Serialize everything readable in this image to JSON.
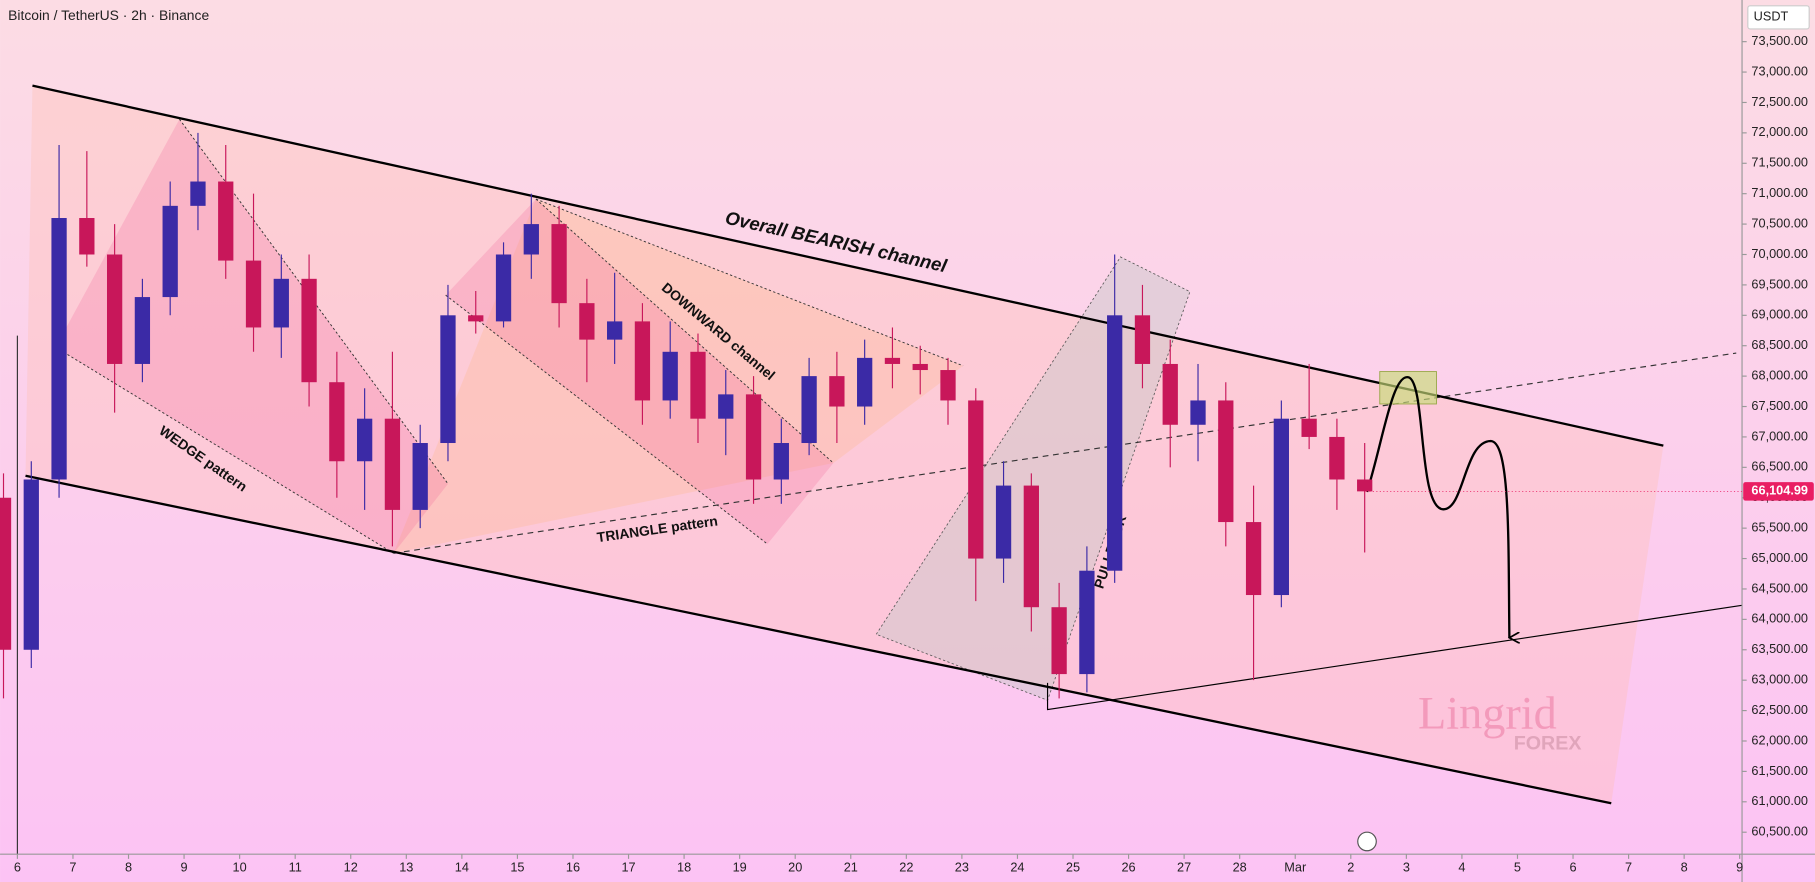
{
  "chart_data": {
    "type": "candlestick",
    "title": "Bitcoin / TetherUS · 2h · Binance",
    "currency": "USDT",
    "x": [
      -0.25,
      0.25,
      0.75,
      1.25,
      1.75,
      2.25,
      2.75,
      3.25,
      3.75,
      4.25,
      4.75,
      5.25,
      5.75,
      6.25,
      6.75,
      7.25,
      7.75,
      8.25,
      8.75,
      9.25,
      9.75,
      10.25,
      10.75,
      11.25,
      11.75,
      12.25,
      12.75,
      13.25,
      13.75,
      14.25,
      14.75,
      15.25,
      15.75,
      16.25,
      16.75,
      17.25,
      17.75,
      18.25,
      18.75,
      19.25,
      19.75,
      20.25,
      20.75,
      21.25,
      21.75,
      22.25,
      22.75,
      23.25,
      23.75,
      24.25
    ],
    "open": [
      66000,
      63500,
      66300,
      70600,
      70000,
      68200,
      69300,
      70800,
      71200,
      69900,
      68800,
      69600,
      67900,
      66600,
      67300,
      65800,
      66900,
      69000,
      68900,
      70000,
      70500,
      69200,
      68600,
      68900,
      67600,
      68400,
      67300,
      67700,
      66300,
      66900,
      68000,
      67500,
      68300,
      68200,
      68100,
      67600,
      65000,
      66200,
      64200,
      63100,
      64800,
      69000,
      68200,
      67200,
      67600,
      65600,
      64400,
      67300,
      67000,
      66300
    ],
    "high": [
      66400,
      66600,
      71800,
      71700,
      70500,
      69600,
      71200,
      72000,
      71800,
      71000,
      70000,
      70000,
      68400,
      67800,
      68400,
      67200,
      69500,
      69400,
      70200,
      71000,
      70800,
      69600,
      69700,
      69200,
      68900,
      68700,
      68100,
      68000,
      67300,
      68300,
      68400,
      68600,
      68800,
      68500,
      68300,
      67800,
      66600,
      66400,
      64600,
      65200,
      70000,
      69500,
      68600,
      68200,
      67900,
      66200,
      67600,
      68200,
      67300,
      66900
    ],
    "low": [
      62700,
      63200,
      66000,
      69800,
      67400,
      67900,
      69000,
      70400,
      69600,
      68400,
      68300,
      67500,
      66000,
      65800,
      65200,
      65500,
      66600,
      68700,
      68800,
      69600,
      68800,
      67900,
      68200,
      67200,
      67300,
      66900,
      66700,
      65900,
      65900,
      66700,
      66900,
      67200,
      67800,
      67700,
      67200,
      64300,
      64600,
      63800,
      62700,
      62800,
      64600,
      67800,
      66500,
      66600,
      65200,
      63000,
      64200,
      66800,
      65800,
      65100
    ],
    "close": [
      63500,
      66300,
      70600,
      70000,
      68200,
      69300,
      70800,
      71200,
      69900,
      68800,
      69600,
      67900,
      66600,
      67300,
      65800,
      66900,
      69000,
      68900,
      70000,
      70500,
      69200,
      68600,
      68900,
      67600,
      68400,
      67300,
      67700,
      66300,
      66900,
      68000,
      67500,
      68300,
      68200,
      68100,
      67600,
      65000,
      66200,
      64200,
      63100,
      64800,
      69000,
      68200,
      67200,
      67600,
      65600,
      64400,
      67300,
      67000,
      66300,
      66104.99
    ],
    "up_color": "#3b2aa6",
    "down_color": "#c8175a",
    "last_price": {
      "value": 66104.99,
      "label": "66,104.99"
    },
    "last_price_color": "#e91e63",
    "xlim": [
      -0.3125,
      31.042
    ],
    "xticks": [
      {
        "value": 0,
        "label": "6"
      },
      {
        "value": 1,
        "label": "7"
      },
      {
        "value": 2,
        "label": "8"
      },
      {
        "value": 3,
        "label": "9"
      },
      {
        "value": 4,
        "label": "10"
      },
      {
        "value": 5,
        "label": "11"
      },
      {
        "value": 6,
        "label": "12"
      },
      {
        "value": 7,
        "label": "13"
      },
      {
        "value": 8,
        "label": "14"
      },
      {
        "value": 9,
        "label": "15"
      },
      {
        "value": 10,
        "label": "16"
      },
      {
        "value": 11,
        "label": "17"
      },
      {
        "value": 12,
        "label": "18"
      },
      {
        "value": 13,
        "label": "19"
      },
      {
        "value": 14,
        "label": "20"
      },
      {
        "value": 15,
        "label": "21"
      },
      {
        "value": 16,
        "label": "22"
      },
      {
        "value": 17,
        "label": "23"
      },
      {
        "value": 18,
        "label": "24"
      },
      {
        "value": 19,
        "label": "25"
      },
      {
        "value": 20,
        "label": "26"
      },
      {
        "value": 21,
        "label": "27"
      },
      {
        "value": 22,
        "label": "28"
      },
      {
        "value": 23,
        "label": "Mar"
      },
      {
        "value": 24,
        "label": "2"
      },
      {
        "value": 25,
        "label": "3"
      },
      {
        "value": 26,
        "label": "4"
      },
      {
        "value": 27,
        "label": "5"
      },
      {
        "value": 28,
        "label": "6"
      },
      {
        "value": 29,
        "label": "7"
      },
      {
        "value": 30,
        "label": "8"
      },
      {
        "value": 31,
        "label": "9"
      }
    ],
    "ylim": [
      60138,
      74185
    ],
    "yticks": [
      {
        "value": 60500,
        "label": "60,500.00"
      },
      {
        "value": 61000,
        "label": "61,000.00"
      },
      {
        "value": 61500,
        "label": "61,500.00"
      },
      {
        "value": 62000,
        "label": "62,000.00"
      },
      {
        "value": 62500,
        "label": "62,500.00"
      },
      {
        "value": 63000,
        "label": "63,000.00"
      },
      {
        "value": 63500,
        "label": "63,500.00"
      },
      {
        "value": 64000,
        "label": "64,000.00"
      },
      {
        "value": 64500,
        "label": "64,500.00"
      },
      {
        "value": 65000,
        "label": "65,000.00"
      },
      {
        "value": 65500,
        "label": "65,500.00"
      },
      {
        "value": 66000,
        "label": "66,000.00"
      },
      {
        "value": 66500,
        "label": "66,500.00"
      },
      {
        "value": 67000,
        "label": "67,000.00"
      },
      {
        "value": 67500,
        "label": "67,500.00"
      },
      {
        "value": 68000,
        "label": "68,000.00"
      },
      {
        "value": 68500,
        "label": "68,500.00"
      },
      {
        "value": 69000,
        "label": "69,000.00"
      },
      {
        "value": 69500,
        "label": "69,500.00"
      },
      {
        "value": 70000,
        "label": "70,000.00"
      },
      {
        "value": 70500,
        "label": "70,500.00"
      },
      {
        "value": 71000,
        "label": "71,000.00"
      },
      {
        "value": 71500,
        "label": "71,500.00"
      },
      {
        "value": 72000,
        "label": "72,000.00"
      },
      {
        "value": 72500,
        "label": "72,500.00"
      },
      {
        "value": 73000,
        "label": "73,000.00"
      },
      {
        "value": 73500,
        "label": "73,500.00"
      }
    ],
    "annotations": [
      "Overall BEARISH channel",
      "DOWNWARD channel",
      "WEDGE pattern",
      "TRIANGLE pattern",
      "PULLBACK"
    ],
    "logo": [
      "Lingrid",
      "FOREX"
    ]
  }
}
